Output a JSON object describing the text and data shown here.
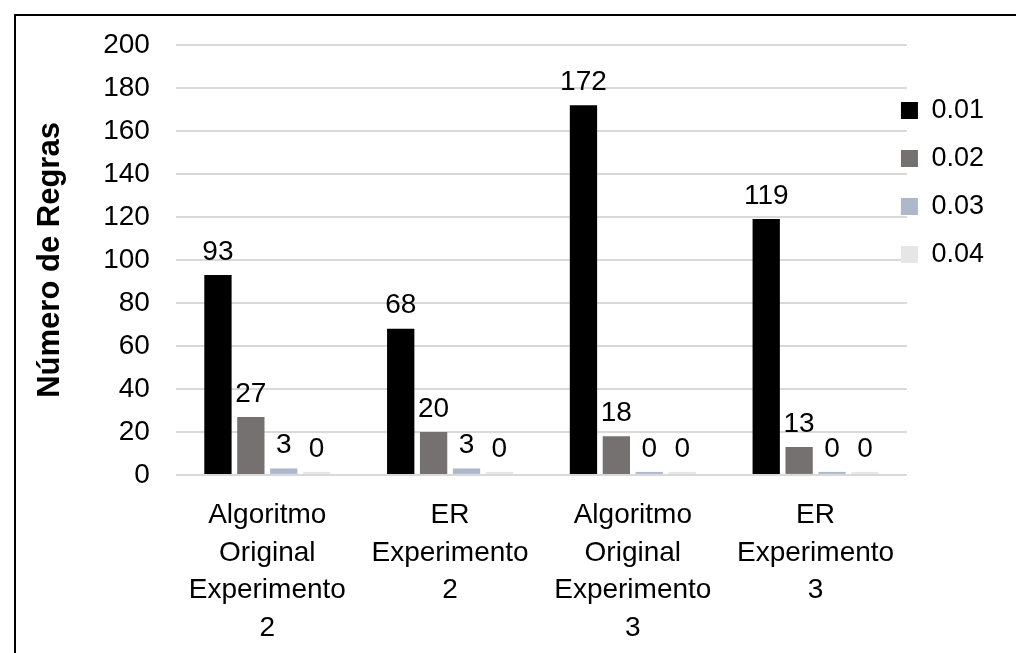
{
  "chart_data": {
    "type": "bar",
    "ylabel": "Número de Regras",
    "categories": [
      "Algoritmo Original Experimento 2",
      "ER Experimento 2",
      "Algoritmo Original Experimento 3",
      "ER Experimento 3"
    ],
    "series": [
      {
        "name": "0.01",
        "color": "#000000",
        "values": [
          93,
          68,
          172,
          119
        ]
      },
      {
        "name": "0.02",
        "color": "#767171",
        "values": [
          27,
          20,
          18,
          13
        ]
      },
      {
        "name": "0.03",
        "color": "#adb9ca",
        "values": [
          3,
          3,
          0,
          0
        ]
      },
      {
        "name": "0.04",
        "color": "#e7e6e6",
        "values": [
          0,
          0,
          0,
          0
        ]
      }
    ],
    "ylim": [
      0,
      200
    ],
    "yticks": [
      0,
      20,
      40,
      60,
      80,
      100,
      120,
      140,
      160,
      180,
      200
    ],
    "grid": "y",
    "legend": "right",
    "data_labels": true
  }
}
